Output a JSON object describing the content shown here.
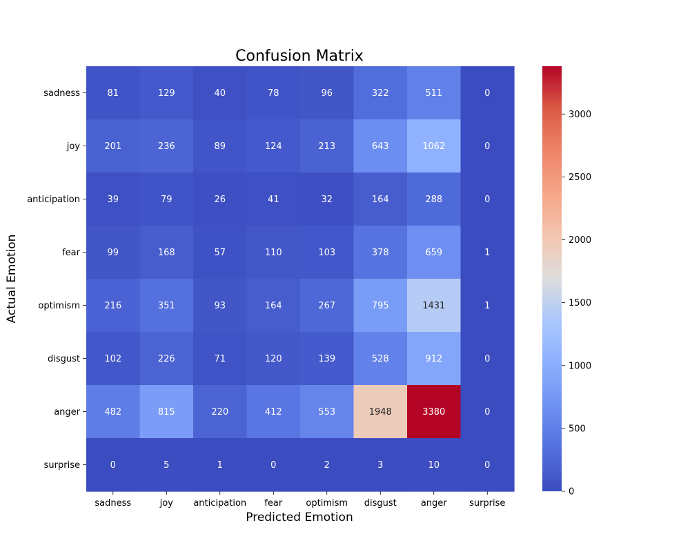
{
  "chart_data": {
    "type": "heatmap",
    "title": "Confusion Matrix",
    "xlabel": "Predicted Emotion",
    "ylabel": "Actual Emotion",
    "x_categories": [
      "sadness",
      "joy",
      "anticipation",
      "fear",
      "optimism",
      "disgust",
      "anger",
      "surprise"
    ],
    "y_categories": [
      "sadness",
      "joy",
      "anticipation",
      "fear",
      "optimism",
      "disgust",
      "anger",
      "surprise"
    ],
    "values": [
      [
        81,
        129,
        40,
        78,
        96,
        322,
        511,
        0
      ],
      [
        201,
        236,
        89,
        124,
        213,
        643,
        1062,
        0
      ],
      [
        39,
        79,
        26,
        41,
        32,
        164,
        288,
        0
      ],
      [
        99,
        168,
        57,
        110,
        103,
        378,
        659,
        1
      ],
      [
        216,
        351,
        93,
        164,
        267,
        795,
        1431,
        1
      ],
      [
        102,
        226,
        71,
        120,
        139,
        528,
        912,
        0
      ],
      [
        482,
        815,
        220,
        412,
        553,
        1948,
        3380,
        0
      ],
      [
        0,
        5,
        1,
        0,
        2,
        3,
        10,
        0
      ]
    ],
    "colormap": "coolwarm",
    "vmin": 0,
    "vmax": 3380,
    "colorbar_ticks": [
      0,
      500,
      1000,
      1500,
      2000,
      2500,
      3000
    ],
    "grid": false,
    "legend": "colorbar-right"
  }
}
